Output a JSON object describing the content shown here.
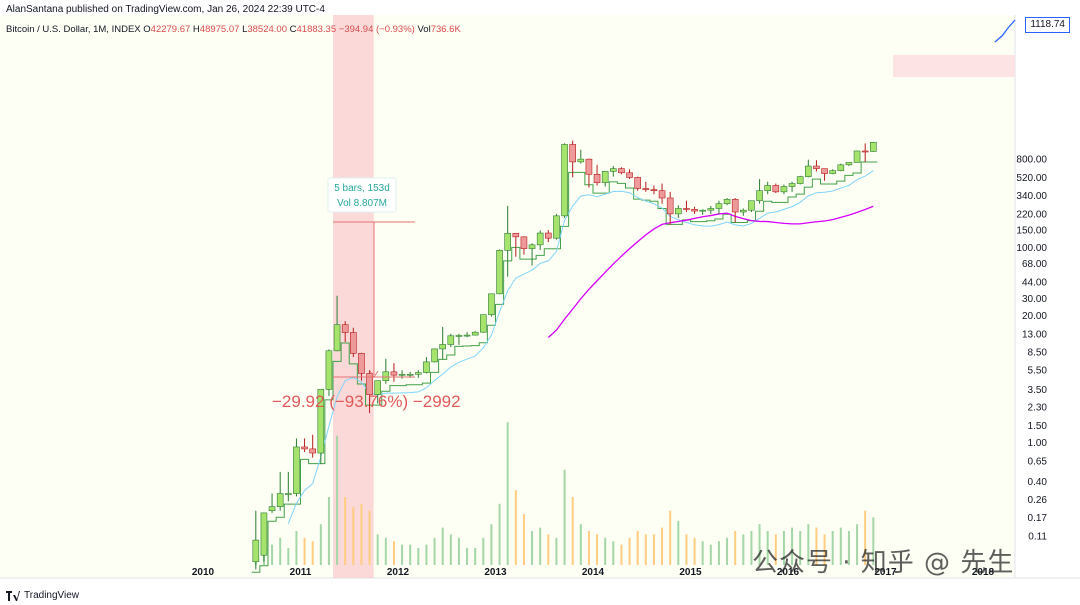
{
  "header": {
    "publisher": "AlanSantana published on TradingView.com, Jan 26, 2024 22:39 UTC-4"
  },
  "legend": {
    "symbol": "Bitcoin / U.S. Dollar, 1M, INDEX",
    "open_label": "O",
    "open": "42279.67",
    "high_label": "H",
    "high": "48975.07",
    "low_label": "L",
    "low": "38524.00",
    "close_label": "C",
    "close": "41883.35",
    "change": "−394.94 (−0.93%)",
    "vol_label": "Vol",
    "vol": "736.6K"
  },
  "price_badge": "1118.74",
  "measure": {
    "bars": "5 bars, 153d",
    "volume": "Vol 8.807M",
    "change": "−29.92 (−93.76%) −2992"
  },
  "footer": {
    "brand": "TradingView"
  },
  "watermark": "公众号 · 知乎 @ 先生",
  "colors": {
    "up": "#a5e36d",
    "up_border": "#2e7d32",
    "down": "#ef9a9a",
    "down_border": "#b71c1c",
    "step_line": "#43a047",
    "ema_line": "#81d4fa",
    "sma_line": "#d500f9",
    "top_line": "#2962ff",
    "highlight": "#f8c9cc",
    "vol_up": "#a5d6a7",
    "vol_down": "#ffcc80"
  },
  "chart_data": {
    "type": "candlestick",
    "title": "Bitcoin / U.S. Dollar, 1M, INDEX",
    "yscale": "log",
    "y_ticks": [
      "1118.74",
      "800.00",
      "520.00",
      "340.00",
      "220.00",
      "150.00",
      "100.00",
      "68.00",
      "44.00",
      "30.00",
      "20.00",
      "13.00",
      "8.50",
      "5.50",
      "3.50",
      "2.30",
      "1.50",
      "1.00",
      "0.65",
      "0.40",
      "0.26",
      "0.17",
      "0.11"
    ],
    "x_ticks": [
      "2010",
      "2011",
      "2012",
      "2013",
      "2014",
      "2015",
      "2016",
      "2017",
      "2018"
    ],
    "x_start": 2010.5,
    "candles": [
      {
        "o": 0.06,
        "h": 0.2,
        "l": 0.05,
        "c": 0.1
      },
      {
        "o": 0.07,
        "h": 0.1,
        "l": 0.06,
        "c": 0.19
      },
      {
        "o": 0.2,
        "h": 0.3,
        "l": 0.19,
        "c": 0.22
      },
      {
        "o": 0.22,
        "h": 0.5,
        "l": 0.2,
        "c": 0.3
      },
      {
        "o": 0.3,
        "h": 0.5,
        "l": 0.25,
        "c": 0.3
      },
      {
        "o": 0.3,
        "h": 1.1,
        "l": 0.28,
        "c": 0.9
      },
      {
        "o": 0.9,
        "h": 1.1,
        "l": 0.8,
        "c": 0.86
      },
      {
        "o": 0.86,
        "h": 1.2,
        "l": 0.7,
        "c": 0.78
      },
      {
        "o": 0.78,
        "h": 1.0,
        "l": 0.6,
        "c": 3.5
      },
      {
        "o": 3.5,
        "h": 9,
        "l": 3.0,
        "c": 8.7
      },
      {
        "o": 8.7,
        "h": 31.9,
        "l": 8.6,
        "c": 16.1
      },
      {
        "o": 16.1,
        "h": 17.5,
        "l": 10.7,
        "c": 13.4
      },
      {
        "o": 13.4,
        "h": 15,
        "l": 7.5,
        "c": 8.2
      },
      {
        "o": 8.2,
        "h": 8.3,
        "l": 4.3,
        "c": 5.1
      },
      {
        "o": 5.1,
        "h": 5.5,
        "l": 2.0,
        "c": 3.1
      },
      {
        "o": 3.1,
        "h": 3.5,
        "l": 2.5,
        "c": 4.3
      },
      {
        "o": 4.3,
        "h": 7.2,
        "l": 4.0,
        "c": 5.3
      },
      {
        "o": 5.3,
        "h": 6.5,
        "l": 4.2,
        "c": 4.9
      },
      {
        "o": 4.9,
        "h": 5.5,
        "l": 4.5,
        "c": 5.0
      },
      {
        "o": 5.0,
        "h": 5.3,
        "l": 4.6,
        "c": 5.0
      },
      {
        "o": 5.0,
        "h": 5.5,
        "l": 4.6,
        "c": 5.2
      },
      {
        "o": 5.2,
        "h": 7.5,
        "l": 5.1,
        "c": 6.7
      },
      {
        "o": 6.7,
        "h": 9.2,
        "l": 6.6,
        "c": 9.1
      },
      {
        "o": 9.1,
        "h": 15.3,
        "l": 7.1,
        "c": 10.1
      },
      {
        "o": 10.1,
        "h": 13,
        "l": 9.5,
        "c": 12.4
      },
      {
        "o": 12.4,
        "h": 13,
        "l": 10,
        "c": 12.5
      },
      {
        "o": 12.5,
        "h": 13.5,
        "l": 12,
        "c": 12.6
      },
      {
        "o": 12.6,
        "h": 13.8,
        "l": 12.5,
        "c": 13.5
      },
      {
        "o": 13.5,
        "h": 20,
        "l": 13.3,
        "c": 20.4
      },
      {
        "o": 20.4,
        "h": 33,
        "l": 19.5,
        "c": 33.4
      },
      {
        "o": 33.4,
        "h": 95,
        "l": 33,
        "c": 93
      },
      {
        "o": 93,
        "h": 266,
        "l": 50,
        "c": 139
      },
      {
        "o": 139,
        "h": 140,
        "l": 80,
        "c": 128
      },
      {
        "o": 128,
        "h": 130,
        "l": 84,
        "c": 97
      },
      {
        "o": 97,
        "h": 110,
        "l": 65,
        "c": 106
      },
      {
        "o": 106,
        "h": 149,
        "l": 94,
        "c": 140
      },
      {
        "o": 140,
        "h": 150,
        "l": 113,
        "c": 124
      },
      {
        "o": 124,
        "h": 220,
        "l": 120,
        "c": 210
      },
      {
        "o": 210,
        "h": 1163,
        "l": 200,
        "c": 1132
      },
      {
        "o": 1132,
        "h": 1240,
        "l": 522,
        "c": 750
      },
      {
        "o": 750,
        "h": 1000,
        "l": 720,
        "c": 800
      },
      {
        "o": 800,
        "h": 810,
        "l": 410,
        "c": 560
      },
      {
        "o": 560,
        "h": 700,
        "l": 430,
        "c": 460
      },
      {
        "o": 460,
        "h": 590,
        "l": 420,
        "c": 600
      },
      {
        "o": 600,
        "h": 680,
        "l": 530,
        "c": 640
      },
      {
        "o": 640,
        "h": 660,
        "l": 560,
        "c": 580
      },
      {
        "o": 580,
        "h": 630,
        "l": 500,
        "c": 520
      },
      {
        "o": 520,
        "h": 530,
        "l": 380,
        "c": 400
      },
      {
        "o": 400,
        "h": 470,
        "l": 370,
        "c": 390
      },
      {
        "o": 390,
        "h": 430,
        "l": 350,
        "c": 380
      },
      {
        "o": 380,
        "h": 450,
        "l": 280,
        "c": 320
      },
      {
        "o": 320,
        "h": 370,
        "l": 170,
        "c": 220
      },
      {
        "o": 220,
        "h": 270,
        "l": 200,
        "c": 250
      },
      {
        "o": 250,
        "h": 300,
        "l": 230,
        "c": 245
      },
      {
        "o": 245,
        "h": 260,
        "l": 220,
        "c": 235
      },
      {
        "o": 235,
        "h": 245,
        "l": 215,
        "c": 240
      },
      {
        "o": 240,
        "h": 265,
        "l": 220,
        "c": 250
      },
      {
        "o": 250,
        "h": 300,
        "l": 220,
        "c": 280
      },
      {
        "o": 280,
        "h": 320,
        "l": 270,
        "c": 310
      },
      {
        "o": 310,
        "h": 320,
        "l": 180,
        "c": 230
      },
      {
        "o": 230,
        "h": 250,
        "l": 210,
        "c": 240
      },
      {
        "o": 240,
        "h": 300,
        "l": 230,
        "c": 300
      },
      {
        "o": 300,
        "h": 500,
        "l": 280,
        "c": 380
      },
      {
        "o": 380,
        "h": 470,
        "l": 350,
        "c": 430
      },
      {
        "o": 430,
        "h": 450,
        "l": 360,
        "c": 370
      },
      {
        "o": 370,
        "h": 440,
        "l": 350,
        "c": 420
      },
      {
        "o": 420,
        "h": 470,
        "l": 370,
        "c": 450
      },
      {
        "o": 450,
        "h": 540,
        "l": 440,
        "c": 530
      },
      {
        "o": 530,
        "h": 790,
        "l": 520,
        "c": 680
      },
      {
        "o": 680,
        "h": 780,
        "l": 600,
        "c": 640
      },
      {
        "o": 640,
        "h": 640,
        "l": 480,
        "c": 570
      },
      {
        "o": 570,
        "h": 630,
        "l": 560,
        "c": 610
      },
      {
        "o": 610,
        "h": 720,
        "l": 600,
        "c": 700
      },
      {
        "o": 700,
        "h": 740,
        "l": 680,
        "c": 740
      },
      {
        "o": 740,
        "h": 980,
        "l": 740,
        "c": 970
      },
      {
        "o": 970,
        "h": 1160,
        "l": 750,
        "c": 960
      },
      {
        "o": 960,
        "h": 1200,
        "l": 950,
        "c": 1190
      }
    ],
    "volume_scale_note": "relative",
    "volume": [
      0.02,
      0.05,
      0.06,
      0.08,
      0.05,
      0.1,
      0.08,
      0.07,
      0.12,
      0.2,
      0.38,
      0.2,
      0.17,
      0.18,
      0.16,
      0.09,
      0.08,
      0.07,
      0.06,
      0.06,
      0.05,
      0.06,
      0.08,
      0.11,
      0.09,
      0.08,
      0.05,
      0.05,
      0.08,
      0.12,
      0.18,
      0.42,
      0.22,
      0.15,
      0.1,
      0.11,
      0.09,
      0.08,
      0.28,
      0.2,
      0.12,
      0.1,
      0.09,
      0.08,
      0.07,
      0.06,
      0.08,
      0.1,
      0.09,
      0.09,
      0.11,
      0.16,
      0.13,
      0.09,
      0.08,
      0.07,
      0.06,
      0.07,
      0.08,
      0.1,
      0.09,
      0.1,
      0.12,
      0.1,
      0.09,
      0.1,
      0.11,
      0.1,
      0.12,
      0.11,
      0.09,
      0.1,
      0.11,
      0.1,
      0.12,
      0.16,
      0.14
    ]
  }
}
